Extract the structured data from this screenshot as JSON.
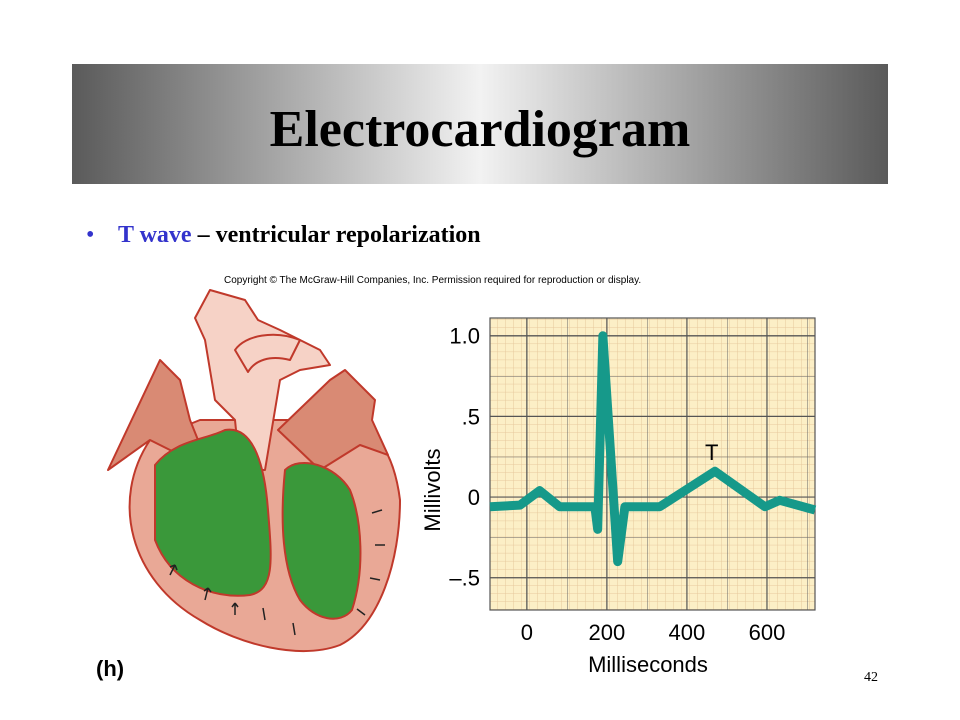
{
  "slide": {
    "title": "Electrocardiogram",
    "bullet": {
      "term": "T wave",
      "text": "– ventricular repolarization"
    },
    "copyright": "Copyright © The McGraw-Hill Companies, Inc. Permission required for reproduction or display.",
    "figure_label": "(h)",
    "page_number": "42"
  },
  "chart_data": {
    "type": "line",
    "xlabel": "Milliseconds",
    "ylabel": "Millivolts",
    "annotation": "T",
    "x": [
      -92,
      -17,
      32,
      82,
      170,
      177,
      190,
      227,
      245,
      332,
      470,
      595,
      632,
      720
    ],
    "values": [
      -0.06,
      -0.05,
      0.04,
      -0.06,
      -0.06,
      -0.2,
      1.0,
      -0.4,
      -0.06,
      -0.06,
      0.16,
      -0.06,
      -0.02,
      -0.08
    ],
    "color": "#16998a",
    "xlim": [
      -92,
      720
    ],
    "ylim": [
      -0.7,
      1.11
    ],
    "xticks": [
      0,
      200,
      400,
      600
    ],
    "yticks": [
      {
        "value": -0.5,
        "label": "–.5"
      },
      0,
      {
        "value": 0.5,
        "label": ".5"
      },
      {
        "value": 1,
        "label": "1.0"
      }
    ],
    "grid": true
  }
}
